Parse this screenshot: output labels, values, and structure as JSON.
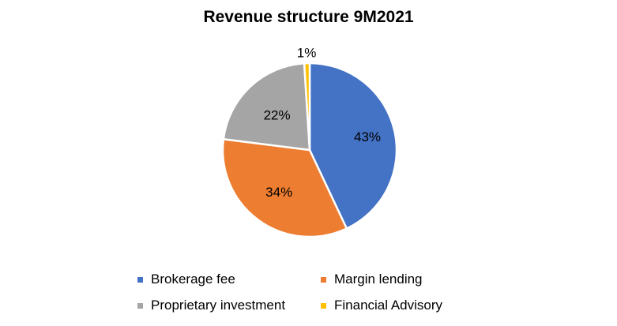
{
  "chart_data": {
    "type": "pie",
    "title": "Revenue structure 9M2021",
    "categories": [
      "Brokerage fee",
      "Margin lending",
      "Proprietary investment",
      "Financial Advisory"
    ],
    "values": [
      43,
      34,
      22,
      1
    ],
    "labels": [
      "43%",
      "34%",
      "22%",
      "1%"
    ],
    "colors": [
      "#4472C4",
      "#ED7D31",
      "#A5A5A5",
      "#FFC000"
    ],
    "start": "12 o'clock",
    "direction": "clockwise",
    "legend_position": "bottom"
  }
}
